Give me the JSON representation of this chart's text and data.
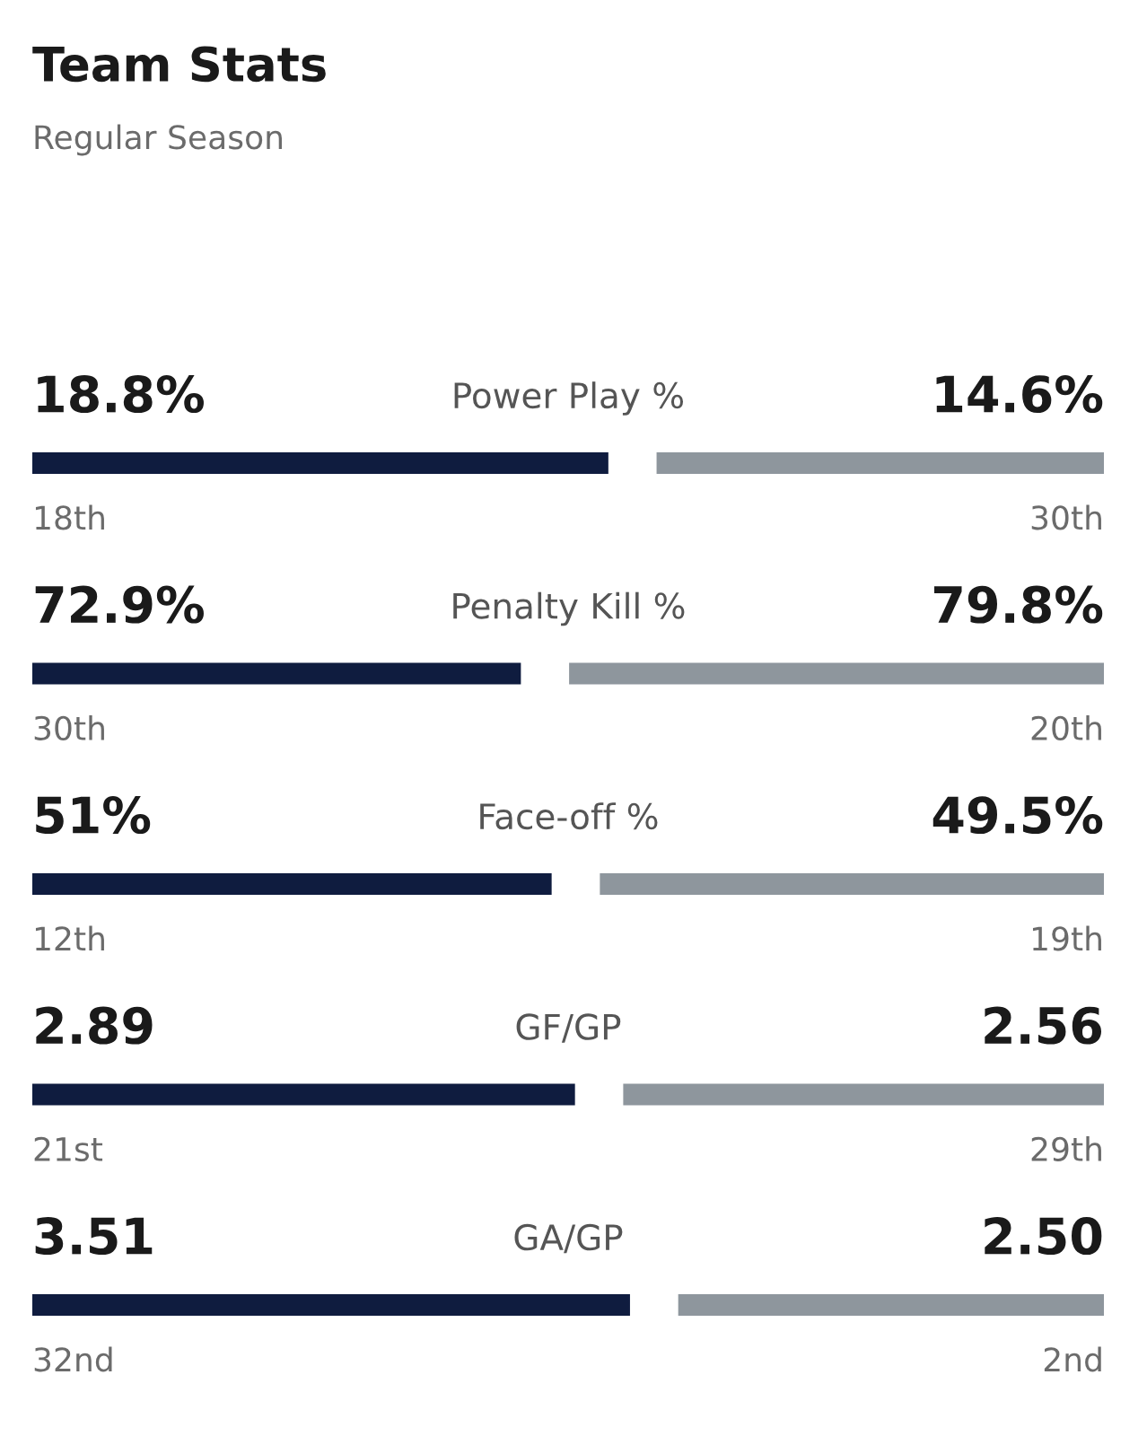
{
  "chart_data": {
    "type": "other",
    "title": "Team Stats",
    "subtitle": "Regular Season",
    "categories": [
      "Power Play %",
      "Penalty Kill %",
      "Face-off %",
      "GF/GP",
      "GA/GP"
    ],
    "series": [
      {
        "color": "#0f1c3f",
        "values": [
          18.8,
          72.9,
          51,
          2.89,
          3.51
        ],
        "value_labels": [
          "18.8%",
          "72.9%",
          "51%",
          "2.89",
          "3.51"
        ]
      },
      {
        "color": "#8e969d",
        "values": [
          14.6,
          79.8,
          49.5,
          2.56,
          2.5
        ],
        "value_labels": [
          "14.6%",
          "79.8%",
          "49.5%",
          "2.56",
          "2.50"
        ]
      }
    ],
    "annotations": [
      "18th",
      "30th",
      "30th",
      "20th",
      "12th",
      "19th",
      "21st",
      "29th",
      "32nd",
      "2nd"
    ]
  }
}
